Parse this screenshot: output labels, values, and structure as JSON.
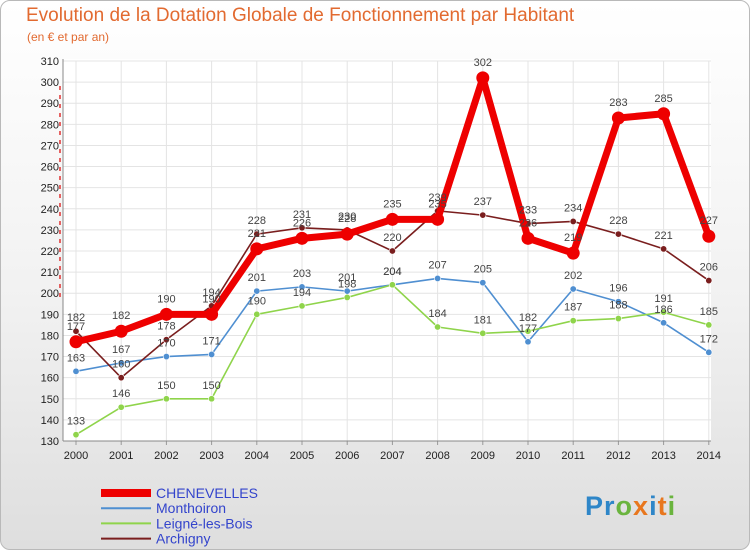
{
  "title": "Evolution de la Dotation Globale de Fonctionnement par Habitant",
  "subtitle": "(en € et par an)",
  "logo": {
    "text": "Proxiti",
    "letter_colors": [
      "#2e86c8",
      "#2e86c8",
      "#6ab43e",
      "#e8771e",
      "#2e86c8",
      "#e8771e",
      "#6ab43e"
    ]
  },
  "chart_data": {
    "type": "line",
    "title": "Evolution de la Dotation Globale de Fonctionnement par Habitant",
    "ylabel": "(en € et par an)",
    "x": [
      2000,
      2001,
      2002,
      2003,
      2004,
      2005,
      2006,
      2007,
      2008,
      2009,
      2010,
      2011,
      2012,
      2013,
      2014
    ],
    "ylim": [
      130,
      310
    ],
    "yticks": [
      130,
      140,
      150,
      160,
      170,
      180,
      190,
      200,
      210,
      220,
      230,
      240,
      250,
      260,
      270,
      280,
      290,
      300,
      310
    ],
    "grid": true,
    "series": [
      {
        "name": "CHENEVELLES",
        "color": "#ee0000",
        "values": [
          177,
          182,
          190,
          190,
          221,
          226,
          228,
          235,
          235,
          302,
          226,
          219,
          283,
          285,
          227
        ]
      },
      {
        "name": "Monthoiron",
        "color": "#4f8fd1",
        "values": [
          163,
          167,
          170,
          171,
          201,
          203,
          201,
          204,
          207,
          205,
          177,
          202,
          196,
          186,
          172
        ]
      },
      {
        "name": "Leigné-les-Bois",
        "color": "#8fd44b",
        "values": [
          133,
          146,
          150,
          150,
          190,
          194,
          198,
          204,
          184,
          181,
          182,
          187,
          188,
          191,
          185
        ]
      },
      {
        "name": "Archigny",
        "color": "#7a1e1e",
        "values": [
          182,
          160,
          178,
          194,
          228,
          231,
          230,
          220,
          239,
          237,
          233,
          234,
          228,
          221,
          206
        ]
      }
    ]
  }
}
